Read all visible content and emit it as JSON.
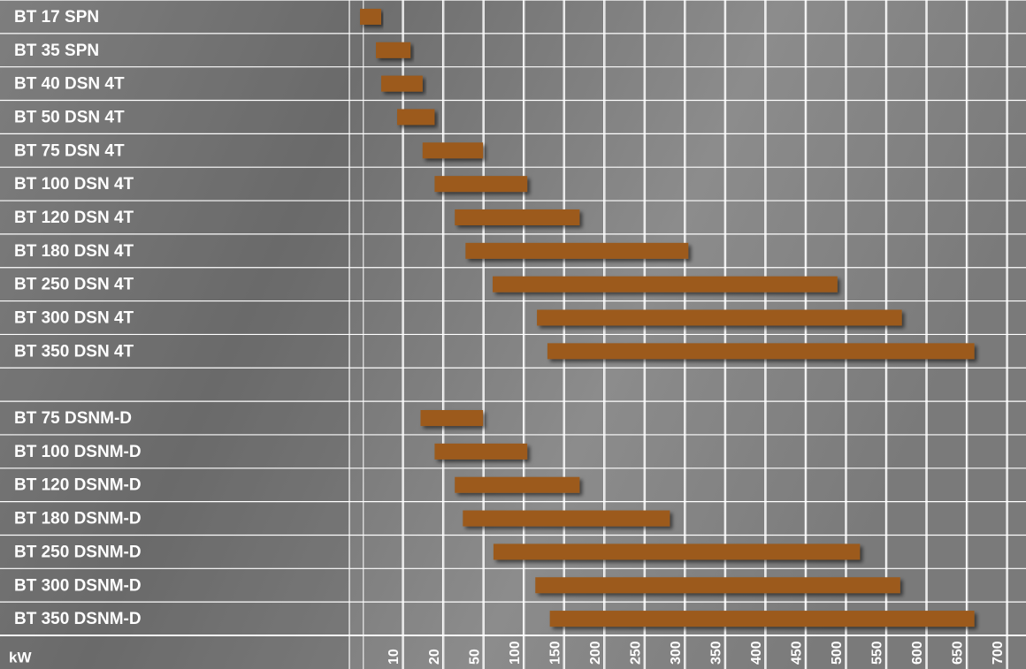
{
  "chart_data": {
    "type": "range_bar",
    "x_label": "kW",
    "categories": [
      "BT 17 SPN",
      "BT 35 SPN",
      "BT 40 DSN 4T",
      "BT 50 DSN 4T",
      "BT 75 DSN 4T",
      "BT 100 DSN 4T",
      "BT 120 DSN 4T",
      "BT 180 DSN 4T",
      "BT 250 DSN 4T",
      "BT 300 DSN 4T",
      "BT 350 DSN 4T",
      null,
      "BT 75 DSNM-D",
      "BT 100 DSNM-D",
      "BT 120 DSNM-D",
      "BT 180 DSNM-D",
      "BT 250 DSNM-D",
      "BT 300 DSNM-D",
      "BT 350 DSNM-D"
    ],
    "series": [
      {
        "name": "min",
        "values": [
          2,
          5,
          6,
          9,
          15,
          18,
          29,
          37,
          62,
          117,
          130,
          null,
          14.5,
          18,
          29,
          35,
          63,
          115,
          133
        ]
      },
      {
        "name": "max",
        "values": [
          6,
          12,
          15,
          18,
          50,
          105,
          170,
          305,
          490,
          570,
          660,
          null,
          50,
          105,
          170,
          282,
          518,
          568,
          660
        ]
      }
    ],
    "color": "#9c5a1a",
    "xlim": [
      0,
      700
    ],
    "xticks": [
      10,
      20,
      50,
      100,
      150,
      200,
      250,
      300,
      350,
      400,
      450,
      500,
      550,
      600,
      650,
      700
    ],
    "grid": true
  }
}
